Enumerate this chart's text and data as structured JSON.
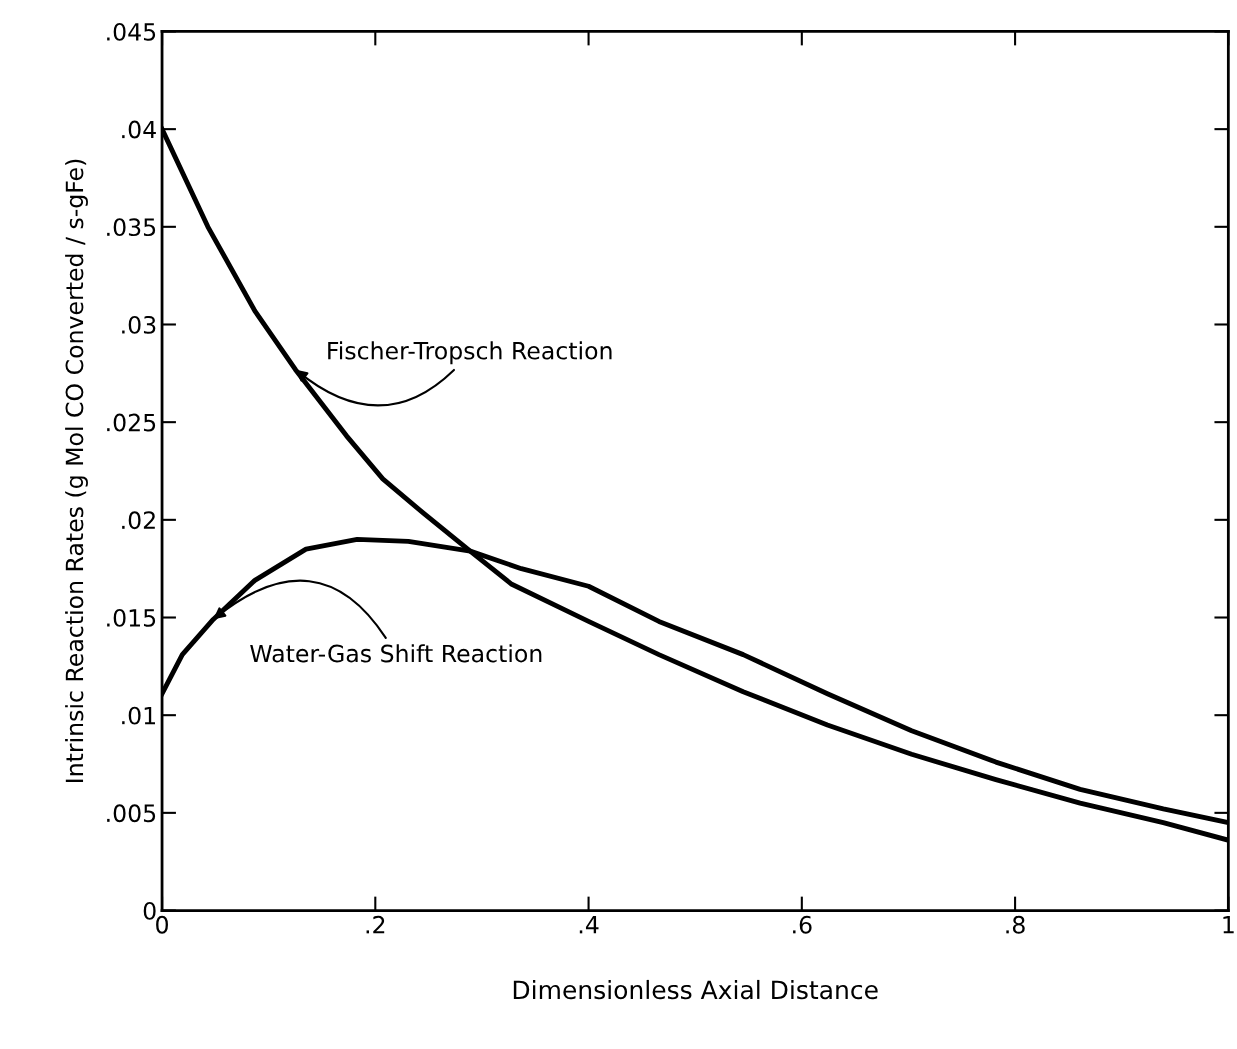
{
  "chart_data": {
    "type": "line",
    "xlabel": "Dimensionless Axial Distance",
    "ylabel": "Intrinsic Reaction Rates (g Mol CO Converted / s-gFe)",
    "xlim": [
      0,
      1
    ],
    "ylim": [
      0,
      0.045
    ],
    "xticks": [
      0,
      {
        "value": 0.2,
        "label": ".2"
      },
      {
        "value": 0.4,
        "label": ".4"
      },
      {
        "value": 0.6,
        "label": ".6"
      },
      {
        "value": 0.8,
        "label": ".8"
      },
      1
    ],
    "yticks": [
      0,
      {
        "value": 0.005,
        "label": ".005"
      },
      {
        "value": 0.01,
        "label": ".01"
      },
      {
        "value": 0.015,
        "label": ".015"
      },
      {
        "value": 0.02,
        "label": ".02"
      },
      {
        "value": 0.025,
        "label": ".025"
      },
      {
        "value": 0.03,
        "label": ".03"
      },
      {
        "value": 0.035,
        "label": ".035"
      },
      {
        "value": 0.04,
        "label": ".04"
      },
      {
        "value": 0.045,
        "label": ".045"
      }
    ],
    "grid": false,
    "legend": false,
    "marker": "none",
    "line_style": "solid",
    "series": [
      {
        "name": "Fischer-Tropsch Reaction",
        "color": "#000000",
        "x": [
          0,
          0.043,
          0.087,
          0.125,
          0.173,
          0.207,
          0.246,
          0.289,
          0.328,
          0.4,
          0.466,
          0.545,
          0.624,
          0.703,
          0.782,
          0.861,
          0.939,
          1
        ],
        "values": [
          0.04,
          0.035,
          0.0307,
          0.0277,
          0.0243,
          0.0221,
          0.0203,
          0.0184,
          0.0167,
          0.0148,
          0.0131,
          0.0112,
          0.0095,
          0.008,
          0.0067,
          0.0055,
          0.0045,
          0.0036
        ]
      },
      {
        "name": "Water-Gas Shift Reaction",
        "color": "#000000",
        "x": [
          0,
          0.019,
          0.048,
          0.087,
          0.135,
          0.183,
          0.231,
          0.289,
          0.337,
          0.4,
          0.466,
          0.545,
          0.624,
          0.703,
          0.782,
          0.861,
          0.939,
          1
        ],
        "values": [
          0.0111,
          0.0131,
          0.0149,
          0.0169,
          0.0185,
          0.019,
          0.0189,
          0.0184,
          0.0175,
          0.0166,
          0.0148,
          0.0131,
          0.0111,
          0.0092,
          0.0076,
          0.0062,
          0.0052,
          0.0045
        ]
      }
    ]
  }
}
